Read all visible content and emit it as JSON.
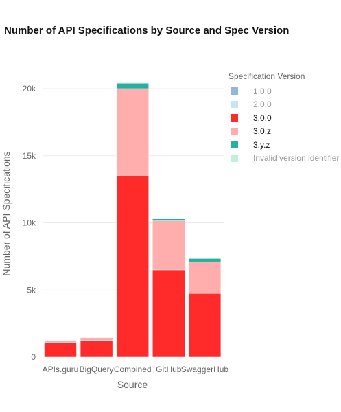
{
  "chart_data": {
    "type": "bar",
    "stacked": true,
    "title": "Number of API Specifications by Source and Spec Version",
    "xlabel": "Source",
    "ylabel": "Number of API Specifications",
    "categories": [
      "APIs.guru",
      "BigQuery",
      "Combined",
      "GitHub",
      "SwaggerHub"
    ],
    "ylim": [
      0,
      22000
    ],
    "yticks": [
      0,
      5000,
      10000,
      15000,
      20000
    ],
    "ytick_labels": [
      "0",
      "5k",
      "10k",
      "15k",
      "20k"
    ],
    "grid": true,
    "legend": {
      "title": "Specification Version",
      "position": "right"
    },
    "series": [
      {
        "name": "1.0.0",
        "color": "#8fb8de",
        "values": [
          0,
          0,
          0,
          0,
          0
        ]
      },
      {
        "name": "2.0.0",
        "color": "#c9e4f2",
        "values": [
          0,
          0,
          0,
          0,
          0
        ]
      },
      {
        "name": "3.0.0",
        "color": "#ff2a2a",
        "values": [
          1100,
          1250,
          13500,
          6500,
          4750
        ]
      },
      {
        "name": "3.0.z",
        "color": "#ffadad",
        "values": [
          120,
          200,
          6500,
          3650,
          2350
        ]
      },
      {
        "name": "3.y.z",
        "color": "#26b0a0",
        "values": [
          30,
          30,
          400,
          150,
          250
        ]
      },
      {
        "name": "Invalid version identifier",
        "color": "#c2f0d6",
        "values": [
          10,
          20,
          40,
          30,
          20
        ]
      }
    ],
    "legend_text_colors": [
      "#999999",
      "#999999",
      "#111111",
      "#111111",
      "#111111",
      "#999999"
    ]
  }
}
